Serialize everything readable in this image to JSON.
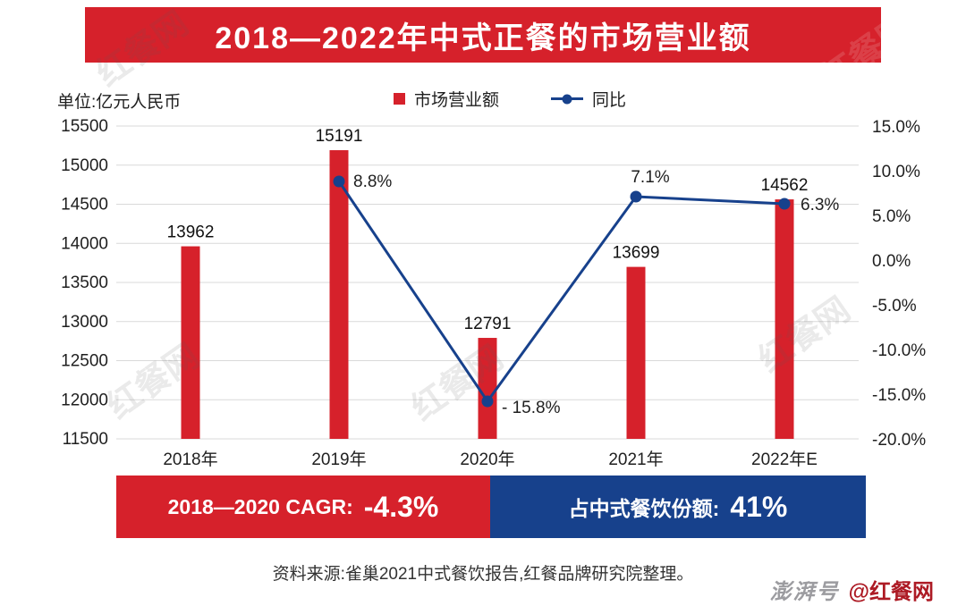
{
  "title": "2018—2022年中式正餐的市场营业额",
  "unit_label": "单位:亿元人民币",
  "legend": {
    "bar": "市场营业额",
    "line": "同比"
  },
  "colors": {
    "red": "#d6212b",
    "blue": "#17418c",
    "grid": "#d9d9d9",
    "text": "#1f1f1f"
  },
  "chart_data": {
    "type": "bar+line",
    "categories": [
      "2018年",
      "2019年",
      "2020年",
      "2021年",
      "2022年E"
    ],
    "series": [
      {
        "name": "市场营业额",
        "type": "bar",
        "axis": "left",
        "color": "#d6212b",
        "values": [
          13962,
          15191,
          12791,
          13699,
          14562
        ],
        "value_labels": [
          "13962",
          "15191",
          "12791",
          "13699",
          "14562"
        ]
      },
      {
        "name": "同比",
        "type": "line",
        "axis": "right",
        "color": "#17418c",
        "values": [
          null,
          8.8,
          -15.8,
          7.1,
          6.3
        ],
        "point_labels": [
          null,
          "8.8%",
          "- 15.8%",
          "7.1%",
          "6.3%"
        ]
      }
    ],
    "left_axis": {
      "min": 11500,
      "max": 15500,
      "step": 500,
      "ticks": [
        "15500",
        "15000",
        "14500",
        "14000",
        "13500",
        "13000",
        "12500",
        "12000",
        "11500"
      ]
    },
    "right_axis": {
      "min": -20,
      "max": 15,
      "step": 5,
      "ticks": [
        "15.0%",
        "10.0%",
        "5.0%",
        "0.0%",
        "-5.0%",
        "-10.0%",
        "-15.0%",
        "-20.0%"
      ]
    },
    "grid": true,
    "legend_position": "top"
  },
  "banners": {
    "cagr_label": "2018—2020 CAGR:",
    "cagr_value": "-4.3%",
    "share_label": "占中式餐饮份额:",
    "share_value": "41%"
  },
  "source": "资料来源:雀巢2021中式餐饮报告,红餐品牌研究院整理。",
  "brand": {
    "platform": "澎湃号",
    "account": "@红餐网"
  },
  "watermark": "红餐网"
}
